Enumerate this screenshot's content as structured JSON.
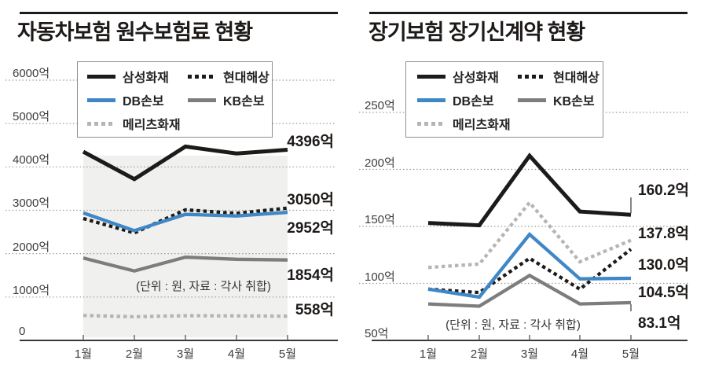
{
  "colors": {
    "ink": "#1c1b1a",
    "blue": "#3f87c5",
    "gray": "#7d7d7d",
    "light_gray": "#b5b5b5",
    "gridline": "#9b9b9b",
    "band": "#f0f0ef"
  },
  "legend": {
    "items": [
      {
        "label": "삼성화재",
        "style": "solid",
        "color": "#1c1b1a"
      },
      {
        "label": "현대해상",
        "style": "dotted",
        "color": "#1c1b1a"
      },
      {
        "label": "DB손보",
        "style": "solid",
        "color": "#3f87c5"
      },
      {
        "label": "KB손보",
        "style": "solid",
        "color": "#7d7d7d"
      },
      {
        "label": "메리츠화재",
        "style": "dotted",
        "color": "#b5b5b5"
      }
    ]
  },
  "chart_data": [
    {
      "type": "line",
      "title": "자동차보험 원수보험료 현황",
      "unit_note": "(단위 : 원, 자료 : 각사 취합)",
      "categories": [
        "1월",
        "2월",
        "3월",
        "4월",
        "5월"
      ],
      "ylim": [
        0,
        6000
      ],
      "grid": "horizontal-dotted",
      "legend_position": "top-inside",
      "y_ticks": [
        {
          "label": "6000억",
          "value": 6000,
          "grid": true
        },
        {
          "label": "5000억",
          "value": 5000,
          "grid": true
        },
        {
          "label": "4000억",
          "value": 4000,
          "grid": true
        },
        {
          "label": "3000억",
          "value": 3000,
          "grid": true
        },
        {
          "label": "2000억",
          "value": 2000,
          "grid": true
        },
        {
          "label": "1000억",
          "value": 1000,
          "grid": true
        },
        {
          "label": "0",
          "value": 0,
          "grid": false
        }
      ],
      "series": [
        {
          "name": "삼성화재",
          "style": "solid",
          "color": "#1c1b1a",
          "values": [
            4350,
            3720,
            4470,
            4310,
            4396
          ],
          "end_label": "4396억"
        },
        {
          "name": "현대해상",
          "style": "dotted",
          "color": "#1c1b1a",
          "values": [
            2810,
            2480,
            3010,
            2930,
            3050
          ],
          "end_label": "3050억"
        },
        {
          "name": "DB손보",
          "style": "solid",
          "color": "#3f87c5",
          "values": [
            2940,
            2530,
            2905,
            2870,
            2952
          ],
          "end_label": "2952억"
        },
        {
          "name": "KB손보",
          "style": "solid",
          "color": "#7d7d7d",
          "values": [
            1900,
            1600,
            1920,
            1870,
            1854
          ],
          "end_label": "1854억"
        },
        {
          "name": "메리츠화재",
          "style": "dotted",
          "color": "#b5b5b5",
          "values": [
            575,
            545,
            570,
            565,
            558
          ],
          "end_label": "558억"
        }
      ],
      "band": {
        "from": "1월",
        "to": "5월",
        "top_value": 4260,
        "bottom_value": 70,
        "color": "#f0f0ef"
      }
    },
    {
      "type": "line",
      "title": "장기보험 장기신계약 현황",
      "unit_note": "(단위 : 원, 자료 : 각사 취합)",
      "categories": [
        "1월",
        "2월",
        "3월",
        "4월",
        "5월"
      ],
      "ylim": [
        50,
        250
      ],
      "grid": "horizontal-dotted",
      "legend_position": "top-inside",
      "y_ticks": [
        {
          "label": "250억",
          "value": 250,
          "grid": true
        },
        {
          "label": "200억",
          "value": 200,
          "grid": true
        },
        {
          "label": "150억",
          "value": 150,
          "grid": true
        },
        {
          "label": "100억",
          "value": 100,
          "grid": true
        },
        {
          "label": "50억",
          "value": 50,
          "grid": false
        }
      ],
      "series": [
        {
          "name": "삼성화재",
          "style": "solid",
          "color": "#1c1b1a",
          "values": [
            153,
            151,
            212,
            163,
            160.2
          ],
          "end_label": "160.2억"
        },
        {
          "name": "현대해상",
          "style": "dotted",
          "color": "#1c1b1a",
          "values": [
            95,
            92,
            122,
            95,
            130.0
          ],
          "end_label": "130.0억"
        },
        {
          "name": "DB손보",
          "style": "solid",
          "color": "#3f87c5",
          "values": [
            95,
            88,
            143,
            104,
            104.5
          ],
          "end_label": "104.5억"
        },
        {
          "name": "KB손보",
          "style": "solid",
          "color": "#7d7d7d",
          "values": [
            82,
            80,
            107,
            82,
            83.1
          ],
          "end_label": "83.1억"
        },
        {
          "name": "메리츠화재",
          "style": "dotted",
          "color": "#b5b5b5",
          "values": [
            114,
            117,
            171,
            119,
            137.8
          ],
          "end_label": "137.8억"
        }
      ],
      "band": null
    }
  ]
}
